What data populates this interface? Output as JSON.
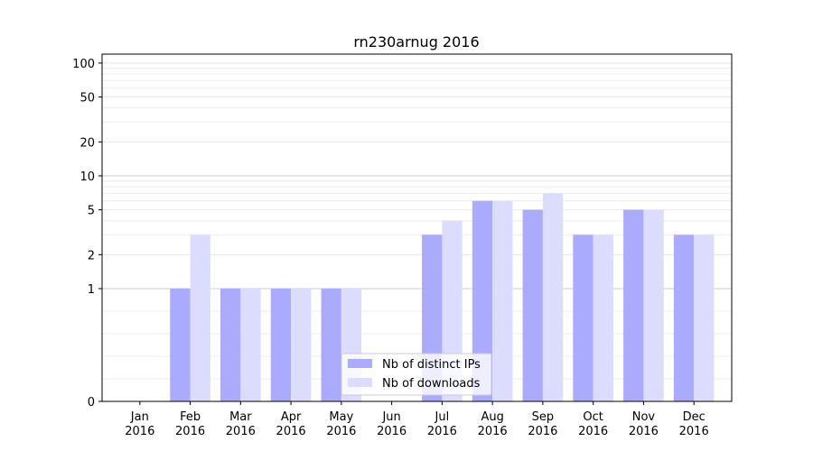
{
  "chart_data": {
    "type": "bar",
    "title": "rn230arnug 2016",
    "xlabel": "",
    "ylabel": "",
    "y_scale": "symlog",
    "yticks": [
      0,
      1,
      2,
      5,
      10,
      20,
      50,
      100
    ],
    "ylim": [
      0,
      120
    ],
    "categories": [
      {
        "month": "Jan",
        "year": "2016"
      },
      {
        "month": "Feb",
        "year": "2016"
      },
      {
        "month": "Mar",
        "year": "2016"
      },
      {
        "month": "Apr",
        "year": "2016"
      },
      {
        "month": "May",
        "year": "2016"
      },
      {
        "month": "Jun",
        "year": "2016"
      },
      {
        "month": "Jul",
        "year": "2016"
      },
      {
        "month": "Aug",
        "year": "2016"
      },
      {
        "month": "Sep",
        "year": "2016"
      },
      {
        "month": "Oct",
        "year": "2016"
      },
      {
        "month": "Nov",
        "year": "2016"
      },
      {
        "month": "Dec",
        "year": "2016"
      }
    ],
    "series": [
      {
        "name": "Nb of distinct IPs",
        "color": "#aaaaff",
        "values": [
          0,
          1,
          1,
          1,
          1,
          0,
          3,
          6,
          5,
          3,
          5,
          3
        ]
      },
      {
        "name": "Nb of downloads",
        "color": "#dcdcff",
        "values": [
          0,
          3,
          1,
          1,
          1,
          0,
          4,
          6,
          7,
          3,
          5,
          3
        ]
      }
    ],
    "legend_position": "lower-center",
    "grid": true
  }
}
